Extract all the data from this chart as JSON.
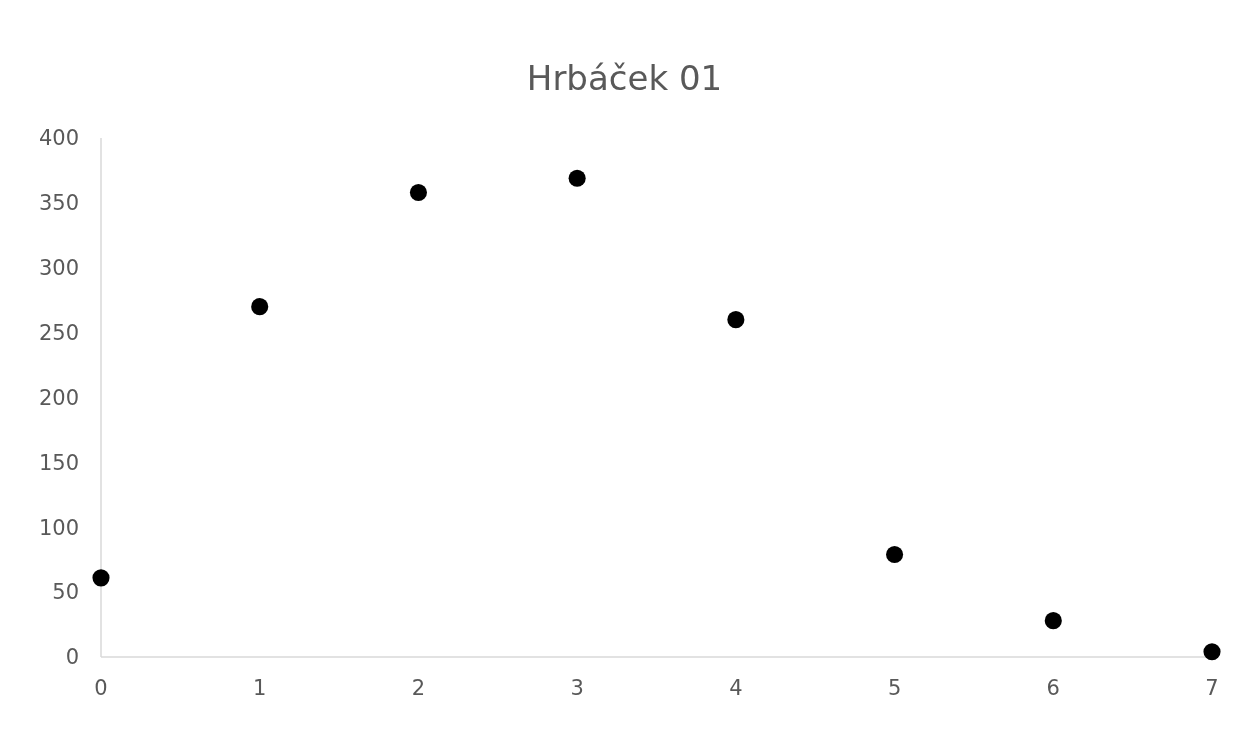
{
  "chart_data": {
    "type": "scatter",
    "title": "Hrbáček 01",
    "x": [
      0,
      1,
      2,
      3,
      4,
      5,
      6,
      7
    ],
    "series": [
      {
        "color": "#000000",
        "values": [
          61,
          270,
          358,
          369,
          260,
          79,
          28,
          4
        ]
      }
    ],
    "xlim": [
      0,
      7
    ],
    "xticks": [
      0,
      1,
      2,
      3,
      4,
      5,
      6,
      7
    ],
    "ylim": [
      0,
      400
    ],
    "yticks": [
      0,
      50,
      100,
      150,
      200,
      250,
      300,
      350,
      400
    ],
    "grid": false,
    "marker": "circle"
  }
}
